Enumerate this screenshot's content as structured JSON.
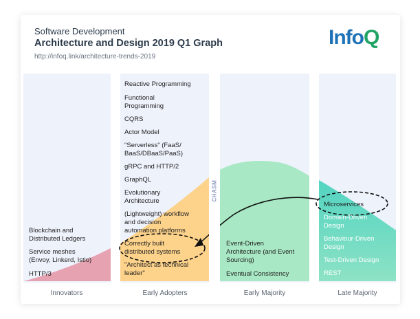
{
  "header": {
    "subtitle": "Software Development",
    "title": "Architecture and Design 2019 Q1 Graph",
    "url": "http://infoq.link/architecture-trends-2019"
  },
  "logo": {
    "main": "Info",
    "accent": "Q",
    "main_color": "#1f73b7",
    "accent_color": "#21a365"
  },
  "chasm_label": "CHASM",
  "colors": {
    "innovators": "#e6a2b1",
    "early_adopters": "#fdd28a",
    "early_majority": "#a8e8c4",
    "late_majority_top": "#52d4c2",
    "late_majority_bottom": "#8de2c4",
    "column_bg": "#eef2fb"
  },
  "columns": [
    {
      "label": "Innovators",
      "items": [
        "Blockchain and\nDistributed Ledgers",
        "Service meshes\n(Envoy, Linkerd, Istio)",
        "HTTP/3"
      ]
    },
    {
      "label": "Early Adopters",
      "items": [
        "Reactive Programming",
        "Functional\nProgramming",
        "CQRS",
        "Actor Model",
        "\"Serverless\" (FaaS/\nBaaS/DBaaS/PaaS)",
        "gRPC and HTTP/2",
        "GraphQL",
        "Evolutionary\nArchitecture",
        "(Lightweight) workflow\nand decision\nautomation platforms",
        "Correctly built\ndistributed systems",
        "\"Architect as technical\nleader\""
      ]
    },
    {
      "label": "Early Majority",
      "items": [
        "Event-Driven\nArchitecture (and Event\nSourcing)",
        "Eventual Consistency"
      ]
    },
    {
      "label": "Late Majority",
      "items": [
        "Microservices",
        "Domain-Driven\nDesign",
        "Behaviour-Driven\nDesign",
        "Test-Driven Design",
        "REST"
      ]
    }
  ]
}
